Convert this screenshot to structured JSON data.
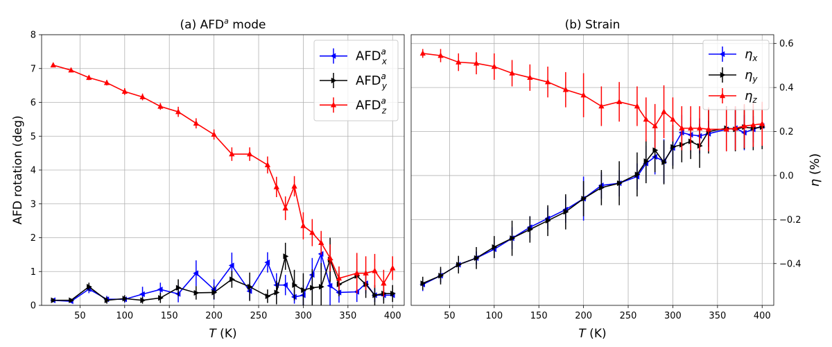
{
  "chart_data": [
    {
      "type": "line",
      "panel": "a",
      "title": "(a) AFD",
      "title_sup": "a",
      "title_tail": " mode",
      "xlabel_var": "T",
      "xlabel_unit": " (K)",
      "ylabel": "AFD rotation (deg)",
      "xlim": [
        7,
        413
      ],
      "ylim": [
        0,
        8
      ],
      "xticks": [
        50,
        100,
        150,
        200,
        250,
        300,
        350,
        400
      ],
      "yticks": [
        0,
        1,
        2,
        3,
        4,
        5,
        6,
        7,
        8
      ],
      "y_axis_side": "left",
      "grid": true,
      "legend_position": "top-right",
      "series": [
        {
          "name": "AFD",
          "sub": "x",
          "sup": "a",
          "color": "#0000ff",
          "marker": "triangle-left",
          "x": [
            20,
            40,
            60,
            80,
            100,
            120,
            140,
            160,
            180,
            200,
            220,
            240,
            260,
            270,
            280,
            290,
            300,
            310,
            320,
            330,
            340,
            360,
            370,
            380,
            390,
            400
          ],
          "y": [
            0.15,
            0.12,
            0.48,
            0.18,
            0.18,
            0.33,
            0.47,
            0.34,
            0.95,
            0.47,
            1.18,
            0.42,
            1.27,
            0.6,
            0.6,
            0.25,
            0.3,
            0.9,
            1.52,
            0.58,
            0.38,
            0.4,
            0.65,
            0.3,
            0.3,
            0.3
          ],
          "err": [
            0.05,
            0.05,
            0.12,
            0.1,
            0.1,
            0.22,
            0.2,
            0.25,
            0.38,
            0.3,
            0.38,
            0.25,
            0.3,
            0.35,
            0.3,
            0.2,
            0.3,
            0.5,
            0.45,
            0.7,
            0.3,
            0.3,
            0.3,
            0.2,
            0.15,
            0.2
          ]
        },
        {
          "name": "AFD",
          "sub": "y",
          "sup": "a",
          "color": "#000000",
          "marker": "triangle-right",
          "x": [
            20,
            40,
            60,
            80,
            100,
            120,
            140,
            160,
            180,
            200,
            220,
            240,
            260,
            270,
            280,
            290,
            300,
            310,
            320,
            330,
            340,
            360,
            370,
            380,
            390,
            400
          ],
          "y": [
            0.15,
            0.15,
            0.55,
            0.15,
            0.2,
            0.15,
            0.22,
            0.52,
            0.37,
            0.38,
            0.77,
            0.55,
            0.27,
            0.38,
            1.45,
            0.6,
            0.45,
            0.52,
            0.55,
            1.35,
            0.62,
            0.87,
            0.62,
            0.3,
            0.35,
            0.35
          ],
          "err": [
            0.05,
            0.05,
            0.12,
            0.1,
            0.1,
            0.1,
            0.15,
            0.25,
            0.2,
            0.2,
            0.25,
            0.42,
            0.2,
            0.35,
            0.4,
            0.45,
            0.5,
            0.55,
            0.7,
            0.65,
            0.35,
            0.5,
            0.4,
            0.3,
            0.3,
            0.25
          ]
        },
        {
          "name": "AFD",
          "sub": "z",
          "sup": "a",
          "color": "#ff0000",
          "marker": "triangle-up",
          "x": [
            20,
            40,
            60,
            80,
            100,
            120,
            140,
            160,
            180,
            200,
            220,
            240,
            260,
            270,
            280,
            290,
            300,
            310,
            320,
            330,
            340,
            360,
            370,
            380,
            390,
            400
          ],
          "y": [
            7.1,
            6.95,
            6.73,
            6.58,
            6.32,
            6.16,
            5.88,
            5.72,
            5.38,
            5.05,
            4.47,
            4.47,
            4.15,
            3.5,
            2.87,
            3.52,
            2.35,
            2.15,
            1.85,
            1.4,
            0.8,
            0.95,
            0.95,
            1.02,
            0.65,
            1.1
          ],
          "err": [
            0.05,
            0.06,
            0.07,
            0.08,
            0.1,
            0.1,
            0.1,
            0.15,
            0.15,
            0.15,
            0.2,
            0.2,
            0.25,
            0.3,
            0.35,
            0.3,
            0.4,
            0.4,
            0.35,
            0.4,
            0.35,
            0.6,
            0.5,
            0.5,
            0.4,
            0.35
          ]
        }
      ]
    },
    {
      "type": "line",
      "panel": "b",
      "title": "(b) Strain",
      "xlabel_var": "T",
      "xlabel_unit": " (K)",
      "ylabel_var": "η",
      "ylabel_unit": " (%)",
      "xlim": [
        7,
        413
      ],
      "ylim": [
        -0.59,
        0.64
      ],
      "xticks": [
        50,
        100,
        150,
        200,
        250,
        300,
        350,
        400
      ],
      "yticks": [
        -0.4,
        -0.2,
        0.0,
        0.2,
        0.4,
        0.6
      ],
      "ytick_labels": [
        "−0.4",
        "−0.2",
        "0.0",
        "0.2",
        "0.4",
        "0.6"
      ],
      "y_axis_side": "right",
      "grid": true,
      "legend_position": "top-right",
      "series": [
        {
          "name": "η",
          "sub": "x",
          "sup": "",
          "color": "#0000ff",
          "marker": "triangle-left",
          "x": [
            20,
            40,
            60,
            80,
            100,
            120,
            140,
            160,
            180,
            200,
            220,
            240,
            260,
            270,
            280,
            290,
            300,
            310,
            320,
            330,
            340,
            360,
            370,
            380,
            390,
            400
          ],
          "y": [
            -0.495,
            -0.455,
            -0.405,
            -0.375,
            -0.335,
            -0.285,
            -0.235,
            -0.195,
            -0.155,
            -0.105,
            -0.045,
            -0.035,
            -0.005,
            0.055,
            0.085,
            0.065,
            0.125,
            0.195,
            0.185,
            0.18,
            0.19,
            0.21,
            0.215,
            0.195,
            0.21,
            0.225
          ],
          "err": [
            0.03,
            0.03,
            0.03,
            0.03,
            0.04,
            0.05,
            0.05,
            0.05,
            0.06,
            0.1,
            0.06,
            0.06,
            0.06,
            0.08,
            0.08,
            0.1,
            0.08,
            0.08,
            0.08,
            0.08,
            0.06,
            0.1,
            0.1,
            0.08,
            0.06,
            0.05
          ]
        },
        {
          "name": "η",
          "sub": "y",
          "sup": "",
          "color": "#000000",
          "marker": "triangle-right",
          "x": [
            20,
            40,
            60,
            80,
            100,
            120,
            140,
            160,
            180,
            200,
            220,
            240,
            260,
            270,
            280,
            290,
            300,
            310,
            320,
            330,
            340,
            360,
            370,
            380,
            390,
            400
          ],
          "y": [
            -0.49,
            -0.455,
            -0.405,
            -0.375,
            -0.325,
            -0.285,
            -0.245,
            -0.205,
            -0.165,
            -0.105,
            -0.055,
            -0.035,
            0.005,
            0.065,
            0.115,
            0.06,
            0.13,
            0.14,
            0.155,
            0.135,
            0.2,
            0.215,
            0.21,
            0.22,
            0.215,
            0.22
          ],
          "err": [
            0.03,
            0.04,
            0.04,
            0.05,
            0.05,
            0.08,
            0.06,
            0.07,
            0.08,
            0.08,
            0.08,
            0.1,
            0.1,
            0.1,
            0.1,
            0.1,
            0.1,
            0.08,
            0.08,
            0.1,
            0.1,
            0.1,
            0.1,
            0.1,
            0.1,
            0.1
          ]
        },
        {
          "name": "η",
          "sub": "z",
          "sup": "",
          "color": "#ff0000",
          "marker": "triangle-up",
          "x": [
            20,
            40,
            60,
            80,
            100,
            120,
            140,
            160,
            180,
            200,
            220,
            240,
            260,
            270,
            280,
            290,
            300,
            310,
            320,
            330,
            340,
            360,
            370,
            380,
            390,
            400
          ],
          "y": [
            0.555,
            0.545,
            0.515,
            0.51,
            0.495,
            0.465,
            0.445,
            0.425,
            0.39,
            0.365,
            0.315,
            0.335,
            0.315,
            0.255,
            0.225,
            0.29,
            0.255,
            0.215,
            0.215,
            0.215,
            0.21,
            0.21,
            0.215,
            0.225,
            0.23,
            0.235
          ],
          "err": [
            0.02,
            0.03,
            0.04,
            0.05,
            0.06,
            0.06,
            0.06,
            0.07,
            0.08,
            0.1,
            0.09,
            0.09,
            0.09,
            0.1,
            0.1,
            0.12,
            0.1,
            0.1,
            0.1,
            0.1,
            0.1,
            0.1,
            0.1,
            0.1,
            0.1,
            0.1
          ]
        }
      ]
    }
  ]
}
